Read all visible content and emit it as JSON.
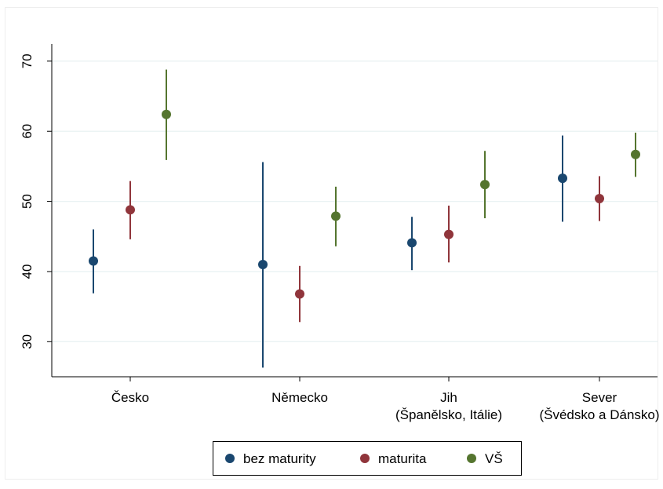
{
  "chart_data": {
    "type": "scatter",
    "subtype": "point-range",
    "categories": [
      [
        "Česko"
      ],
      [
        "Německo"
      ],
      [
        "Jih",
        "(Španělsko, Itálie)"
      ],
      [
        "Sever",
        "(Švédsko a Dánsko)"
      ]
    ],
    "ylim": [
      25,
      72
    ],
    "yticks": [
      30,
      40,
      50,
      60,
      70
    ],
    "grid": true,
    "legend_position": "bottom",
    "series": [
      {
        "name": "bez maturity",
        "color": "#1a476f",
        "points": [
          {
            "y": 41.5,
            "low": 36.9,
            "high": 46.0
          },
          {
            "y": 41.0,
            "low": 26.3,
            "high": 55.6
          },
          {
            "y": 44.1,
            "low": 40.2,
            "high": 47.8
          },
          {
            "y": 53.3,
            "low": 47.1,
            "high": 59.4
          }
        ]
      },
      {
        "name": "maturita",
        "color": "#90353b",
        "points": [
          {
            "y": 48.8,
            "low": 44.6,
            "high": 52.9
          },
          {
            "y": 36.8,
            "low": 32.8,
            "high": 40.8
          },
          {
            "y": 45.3,
            "low": 41.3,
            "high": 49.4
          },
          {
            "y": 50.4,
            "low": 47.2,
            "high": 53.6
          }
        ]
      },
      {
        "name": "VŠ",
        "color": "#55752f",
        "points": [
          {
            "y": 62.4,
            "low": 55.9,
            "high": 68.8
          },
          {
            "y": 47.9,
            "low": 43.6,
            "high": 52.1
          },
          {
            "y": 52.4,
            "low": 47.6,
            "high": 57.2
          },
          {
            "y": 56.7,
            "low": 53.5,
            "high": 59.8
          }
        ]
      }
    ]
  }
}
